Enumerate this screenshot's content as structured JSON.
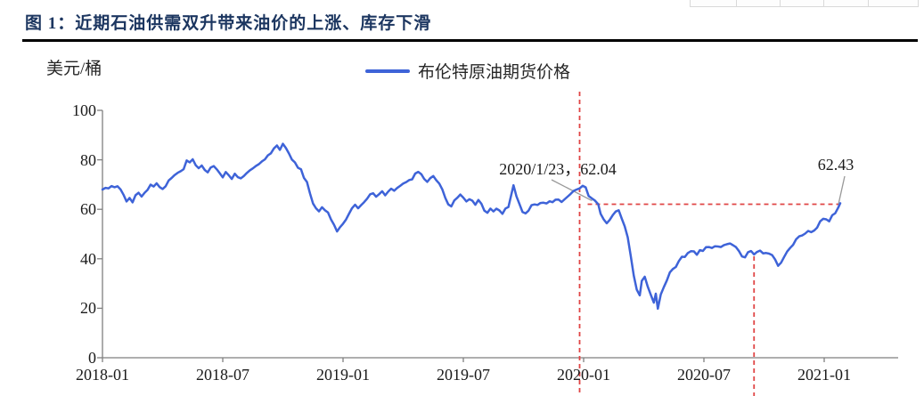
{
  "document": {
    "figure_title": "图 1：近期石油供需双升带来油价的上涨、库存下滑"
  },
  "table_fragment": {
    "description": "bottom edge of a cropped table row",
    "cell_count": 5
  },
  "chart": {
    "y_axis_title": "美元/桶",
    "legend_label": "布伦特原油期货价格",
    "annotation_peak": "2020/1/23，62.04",
    "annotation_end": "62.43",
    "colors": {
      "line": "#3e63d8",
      "dashed_red": "#e04545",
      "title_navy": "#1c3660",
      "axis_gray": "#7f7f7f",
      "leader_gray": "#999999",
      "table_border": "#d9d9d9",
      "text": "#1a1a1a"
    }
  },
  "chart_data": {
    "type": "line",
    "title": "近期石油供需双升带来油价的上涨、库存下滑",
    "ylabel": "美元/桶",
    "ylim": [
      0,
      100
    ],
    "y_ticks": [
      0,
      20,
      40,
      60,
      80,
      100
    ],
    "grid": false,
    "legend_position": "top-center",
    "x_unit": "months_since_2018-01",
    "x_ticks": [
      {
        "m": 0,
        "label": "2018-01"
      },
      {
        "m": 6,
        "label": "2018-07"
      },
      {
        "m": 12,
        "label": "2019-01"
      },
      {
        "m": 18,
        "label": "2019-07"
      },
      {
        "m": 24,
        "label": "2020-01"
      },
      {
        "m": 30,
        "label": "2020-07"
      },
      {
        "m": 36,
        "label": "2021-01"
      }
    ],
    "annotations": {
      "callout_1": {
        "text": "2020/1/23，62.04",
        "point_m": 24.73,
        "value": 62.04
      },
      "callout_2": {
        "text": "62.43",
        "point_m": 36.8,
        "value": 62.43
      },
      "vlines_m": [
        23.8,
        32.5
      ],
      "hline_value": 62.04,
      "hline_from_m": 24.2,
      "hline_to_m": 36.9
    },
    "series": [
      {
        "name": "布伦特原油期货价格",
        "unit": "美元/桶",
        "points": [
          [
            0,
            68
          ],
          [
            0.15,
            68.8
          ],
          [
            0.3,
            68.2
          ],
          [
            0.45,
            69.2
          ],
          [
            0.6,
            68.6
          ],
          [
            0.75,
            69.3
          ],
          [
            0.9,
            68
          ],
          [
            1.05,
            66
          ],
          [
            1.2,
            63.4
          ],
          [
            1.35,
            64.8
          ],
          [
            1.5,
            63.2
          ],
          [
            1.65,
            65.5
          ],
          [
            1.8,
            66.8
          ],
          [
            1.95,
            65.2
          ],
          [
            2.1,
            66.5
          ],
          [
            2.25,
            67.5
          ],
          [
            2.4,
            70
          ],
          [
            2.55,
            69.2
          ],
          [
            2.7,
            70.3
          ],
          [
            2.85,
            68.8
          ],
          [
            3,
            68
          ],
          [
            3.15,
            69.5
          ],
          [
            3.3,
            71.8
          ],
          [
            3.45,
            73
          ],
          [
            3.6,
            73.5
          ],
          [
            3.75,
            74.8
          ],
          [
            3.9,
            75.3
          ],
          [
            4.05,
            76.5
          ],
          [
            4.2,
            79.8
          ],
          [
            4.35,
            79
          ],
          [
            4.5,
            80
          ],
          [
            4.65,
            78
          ],
          [
            4.8,
            76.8
          ],
          [
            4.95,
            77.5
          ],
          [
            5.1,
            76
          ],
          [
            5.25,
            75.2
          ],
          [
            5.4,
            77.3
          ],
          [
            5.55,
            77.8
          ],
          [
            5.7,
            76
          ],
          [
            5.85,
            74.5
          ],
          [
            6,
            73.3
          ],
          [
            6.15,
            74.8
          ],
          [
            6.3,
            73.5
          ],
          [
            6.45,
            72.3
          ],
          [
            6.6,
            74.2
          ],
          [
            6.75,
            73
          ],
          [
            6.9,
            72.5
          ],
          [
            7.05,
            73.2
          ],
          [
            7.2,
            74.8
          ],
          [
            7.35,
            75.5
          ],
          [
            7.5,
            76.8
          ],
          [
            7.65,
            77.5
          ],
          [
            7.8,
            78.3
          ],
          [
            7.95,
            79.5
          ],
          [
            8.1,
            80.5
          ],
          [
            8.25,
            81.5
          ],
          [
            8.4,
            82.8
          ],
          [
            8.55,
            84.3
          ],
          [
            8.7,
            85.8
          ],
          [
            8.85,
            84
          ],
          [
            9,
            86.2
          ],
          [
            9.15,
            84.5
          ],
          [
            9.3,
            82.5
          ],
          [
            9.45,
            80
          ],
          [
            9.6,
            79.2
          ],
          [
            9.75,
            76.5
          ],
          [
            9.9,
            75.8
          ],
          [
            10.05,
            72.8
          ],
          [
            10.2,
            71
          ],
          [
            10.35,
            66.8
          ],
          [
            10.5,
            62.5
          ],
          [
            10.65,
            60.3
          ],
          [
            10.8,
            59.5
          ],
          [
            10.95,
            60.8
          ],
          [
            11.1,
            59.3
          ],
          [
            11.25,
            58.5
          ],
          [
            11.4,
            56
          ],
          [
            11.55,
            53.5
          ],
          [
            11.7,
            51
          ],
          [
            11.85,
            52.5
          ],
          [
            12,
            53.8
          ],
          [
            12.15,
            56
          ],
          [
            12.3,
            58.5
          ],
          [
            12.45,
            60.5
          ],
          [
            12.6,
            61.5
          ],
          [
            12.75,
            60.8
          ],
          [
            12.9,
            61.8
          ],
          [
            13.05,
            62.5
          ],
          [
            13.2,
            64.5
          ],
          [
            13.35,
            66
          ],
          [
            13.5,
            66.5
          ],
          [
            13.65,
            65.3
          ],
          [
            13.8,
            66.3
          ],
          [
            13.95,
            67
          ],
          [
            14.1,
            66
          ],
          [
            14.25,
            67.3
          ],
          [
            14.4,
            68.5
          ],
          [
            14.55,
            67.8
          ],
          [
            14.7,
            68.8
          ],
          [
            14.85,
            69.3
          ],
          [
            15,
            70.2
          ],
          [
            15.15,
            71.3
          ],
          [
            15.3,
            71.8
          ],
          [
            15.45,
            72
          ],
          [
            15.6,
            74.3
          ],
          [
            15.75,
            75.2
          ],
          [
            15.9,
            74.3
          ],
          [
            16.05,
            72
          ],
          [
            16.2,
            71.2
          ],
          [
            16.35,
            72.5
          ],
          [
            16.5,
            73.3
          ],
          [
            16.65,
            72
          ],
          [
            16.8,
            70.5
          ],
          [
            16.95,
            68
          ],
          [
            17.1,
            64.5
          ],
          [
            17.25,
            62
          ],
          [
            17.4,
            61.3
          ],
          [
            17.55,
            63.5
          ],
          [
            17.7,
            64.5
          ],
          [
            17.85,
            66.3
          ],
          [
            18,
            64.8
          ],
          [
            18.15,
            63.5
          ],
          [
            18.3,
            64.3
          ],
          [
            18.45,
            63.5
          ],
          [
            18.6,
            62
          ],
          [
            18.75,
            63.8
          ],
          [
            18.9,
            62.5
          ],
          [
            19.05,
            59.5
          ],
          [
            19.2,
            58.8
          ],
          [
            19.35,
            60.3
          ],
          [
            19.5,
            59
          ],
          [
            19.65,
            60.5
          ],
          [
            19.8,
            59.3
          ],
          [
            19.95,
            58.3
          ],
          [
            20.1,
            60
          ],
          [
            20.25,
            61
          ],
          [
            20.5,
            69.5
          ],
          [
            20.65,
            65
          ],
          [
            20.8,
            62.5
          ],
          [
            20.95,
            59
          ],
          [
            21.1,
            58.3
          ],
          [
            21.25,
            59.8
          ],
          [
            21.4,
            61.8
          ],
          [
            21.55,
            62.3
          ],
          [
            21.7,
            61.5
          ],
          [
            21.85,
            62.3
          ],
          [
            22,
            62.8
          ],
          [
            22.15,
            62.3
          ],
          [
            22.3,
            63.3
          ],
          [
            22.45,
            62.5
          ],
          [
            22.6,
            63.5
          ],
          [
            22.75,
            64
          ],
          [
            22.9,
            63.3
          ],
          [
            23.05,
            64.3
          ],
          [
            23.2,
            65.3
          ],
          [
            23.35,
            66.3
          ],
          [
            23.5,
            67.3
          ],
          [
            23.65,
            68.3
          ],
          [
            23.8,
            68.8
          ],
          [
            23.95,
            69.8
          ],
          [
            24.1,
            68.5
          ],
          [
            24.25,
            65.8
          ],
          [
            24.4,
            64.5
          ],
          [
            24.55,
            63.5
          ],
          [
            24.73,
            62.04
          ],
          [
            24.85,
            58.5
          ],
          [
            25,
            56
          ],
          [
            25.15,
            54.3
          ],
          [
            25.3,
            55.5
          ],
          [
            25.45,
            57.3
          ],
          [
            25.6,
            58.8
          ],
          [
            25.75,
            59.3
          ],
          [
            25.9,
            56.5
          ],
          [
            26.05,
            53
          ],
          [
            26.2,
            49
          ],
          [
            26.35,
            41
          ],
          [
            26.5,
            33
          ],
          [
            26.65,
            27.5
          ],
          [
            26.8,
            25
          ],
          [
            26.9,
            31
          ],
          [
            27.05,
            33
          ],
          [
            27.2,
            28.5
          ],
          [
            27.35,
            25.5
          ],
          [
            27.5,
            22.5
          ],
          [
            27.6,
            25.5
          ],
          [
            27.7,
            19.8
          ],
          [
            27.85,
            25.5
          ],
          [
            28,
            28.5
          ],
          [
            28.15,
            31
          ],
          [
            28.3,
            34.5
          ],
          [
            28.45,
            35.5
          ],
          [
            28.6,
            37
          ],
          [
            28.75,
            39
          ],
          [
            28.9,
            40.5
          ],
          [
            29.05,
            41
          ],
          [
            29.2,
            42
          ],
          [
            29.35,
            42.8
          ],
          [
            29.5,
            43.2
          ],
          [
            29.65,
            42
          ],
          [
            29.8,
            43.8
          ],
          [
            29.95,
            43.2
          ],
          [
            30.1,
            44.3
          ],
          [
            30.25,
            44.8
          ],
          [
            30.4,
            44.2
          ],
          [
            30.55,
            45
          ],
          [
            30.7,
            45.3
          ],
          [
            30.85,
            44.8
          ],
          [
            31,
            45.5
          ],
          [
            31.15,
            45.8
          ],
          [
            31.3,
            46
          ],
          [
            31.45,
            45.3
          ],
          [
            31.6,
            44.8
          ],
          [
            31.75,
            43
          ],
          [
            31.9,
            41
          ],
          [
            32.05,
            40.3
          ],
          [
            32.2,
            42.5
          ],
          [
            32.35,
            43.2
          ],
          [
            32.5,
            41.5
          ],
          [
            32.65,
            42.5
          ],
          [
            32.8,
            43.2
          ],
          [
            32.95,
            42.5
          ],
          [
            33.1,
            42
          ],
          [
            33.25,
            42.5
          ],
          [
            33.4,
            41.5
          ],
          [
            33.55,
            39.5
          ],
          [
            33.7,
            37.5
          ],
          [
            33.85,
            38.5
          ],
          [
            34,
            40.5
          ],
          [
            34.15,
            43.2
          ],
          [
            34.3,
            44.5
          ],
          [
            34.45,
            45.8
          ],
          [
            34.6,
            47.8
          ],
          [
            34.75,
            48.8
          ],
          [
            34.9,
            49.5
          ],
          [
            35.05,
            50.3
          ],
          [
            35.2,
            51
          ],
          [
            35.35,
            50.5
          ],
          [
            35.5,
            51.5
          ],
          [
            35.65,
            53
          ],
          [
            35.8,
            55.5
          ],
          [
            35.95,
            56.5
          ],
          [
            36.1,
            56
          ],
          [
            36.25,
            55.5
          ],
          [
            36.4,
            57.3
          ],
          [
            36.55,
            58.5
          ],
          [
            36.7,
            60.5
          ],
          [
            36.8,
            62.43
          ]
        ]
      }
    ]
  }
}
